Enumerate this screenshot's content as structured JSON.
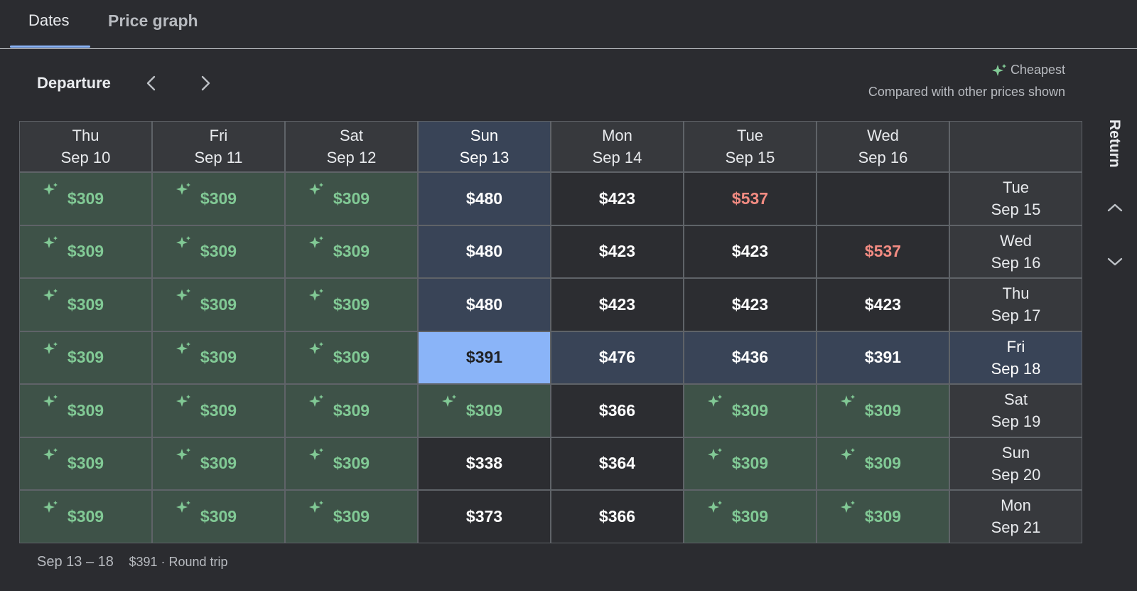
{
  "tabs": [
    {
      "label": "Dates",
      "active": true
    },
    {
      "label": "Price graph",
      "active": false
    }
  ],
  "departure_label": "Departure",
  "legend": {
    "cheapest": "Cheapest",
    "compared": "Compared with other prices shown"
  },
  "return_label": "Return",
  "columns": [
    {
      "day": "Thu",
      "date": "Sep 10"
    },
    {
      "day": "Fri",
      "date": "Sep 11"
    },
    {
      "day": "Sat",
      "date": "Sep 12"
    },
    {
      "day": "Sun",
      "date": "Sep 13"
    },
    {
      "day": "Mon",
      "date": "Sep 14"
    },
    {
      "day": "Tue",
      "date": "Sep 15"
    },
    {
      "day": "Wed",
      "date": "Sep 16"
    }
  ],
  "rows": [
    {
      "day": "Tue",
      "date": "Sep 15",
      "prices": [
        "$309",
        "$309",
        "$309",
        "$480",
        "$423",
        "$537",
        ""
      ],
      "kinds": [
        "cheap",
        "cheap",
        "cheap",
        "sel",
        "norm",
        "exp",
        "empty"
      ]
    },
    {
      "day": "Wed",
      "date": "Sep 16",
      "prices": [
        "$309",
        "$309",
        "$309",
        "$480",
        "$423",
        "$423",
        "$537"
      ],
      "kinds": [
        "cheap",
        "cheap",
        "cheap",
        "sel",
        "norm",
        "norm",
        "exp"
      ]
    },
    {
      "day": "Thu",
      "date": "Sep 17",
      "prices": [
        "$309",
        "$309",
        "$309",
        "$480",
        "$423",
        "$423",
        "$423"
      ],
      "kinds": [
        "cheap",
        "cheap",
        "cheap",
        "sel",
        "norm",
        "norm",
        "norm"
      ]
    },
    {
      "day": "Fri",
      "date": "Sep 18",
      "prices": [
        "$309",
        "$309",
        "$309",
        "$391",
        "$476",
        "$436",
        "$391"
      ],
      "kinds": [
        "cheap",
        "cheap",
        "cheap",
        "active",
        "selrow",
        "selrow",
        "selrow"
      ]
    },
    {
      "day": "Sat",
      "date": "Sep 19",
      "prices": [
        "$309",
        "$309",
        "$309",
        "$309",
        "$366",
        "$309",
        "$309"
      ],
      "kinds": [
        "cheap",
        "cheap",
        "cheap",
        "cheap",
        "norm",
        "cheap",
        "cheap"
      ]
    },
    {
      "day": "Sun",
      "date": "Sep 20",
      "prices": [
        "$309",
        "$309",
        "$309",
        "$338",
        "$364",
        "$309",
        "$309"
      ],
      "kinds": [
        "cheap",
        "cheap",
        "cheap",
        "greentext",
        "norm",
        "cheap",
        "cheap"
      ]
    },
    {
      "day": "Mon",
      "date": "Sep 21",
      "prices": [
        "$309",
        "$309",
        "$309",
        "$373",
        "$366",
        "$309",
        "$309"
      ],
      "kinds": [
        "cheap",
        "cheap",
        "cheap",
        "norm",
        "norm",
        "cheap",
        "cheap"
      ]
    }
  ],
  "summary": {
    "dates": "Sep 13 – 18",
    "price": "$391 · Round trip"
  },
  "colors": {
    "cheap_bg": "#3e5248",
    "cheap_text": "#81c995",
    "expensive_text": "#f28b82",
    "selected_bg": "#394457",
    "active_bg": "#8ab4f8"
  }
}
